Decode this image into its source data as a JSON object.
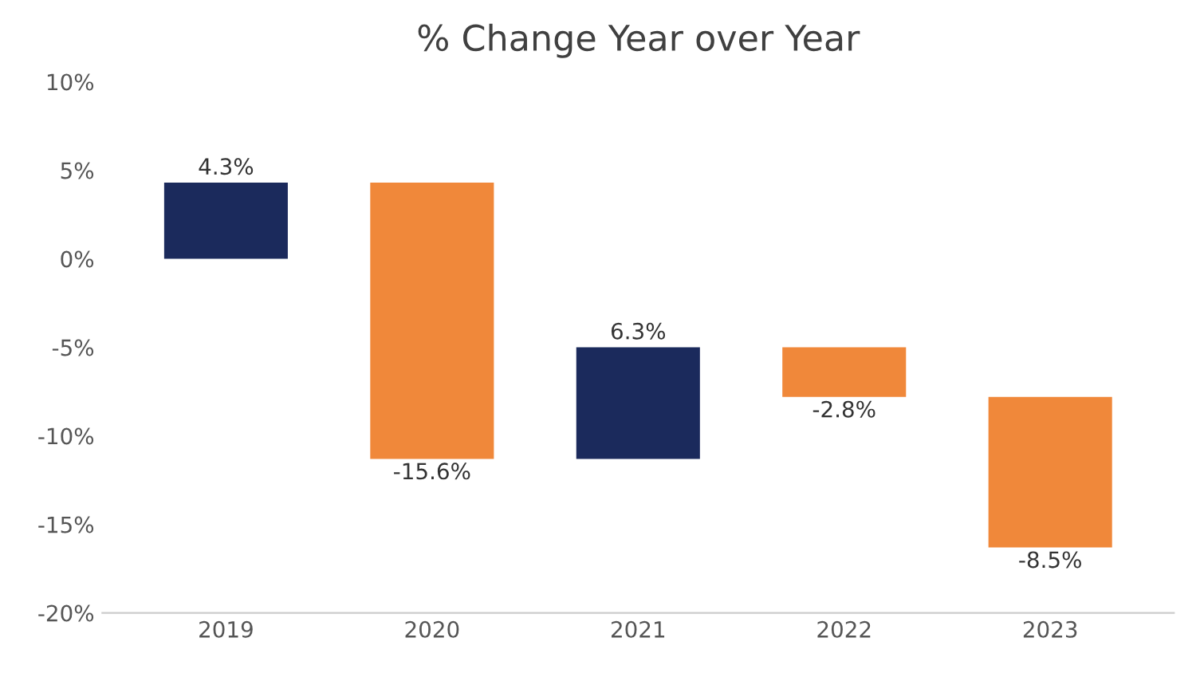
{
  "chart_data": {
    "type": "bar",
    "title": "% Change Year over Year",
    "categories": [
      "2019",
      "2020",
      "2021",
      "2022",
      "2023"
    ],
    "values": [
      4.3,
      -15.6,
      6.3,
      -2.8,
      -8.5
    ],
    "base": [
      0,
      4.3,
      -11.3,
      -5.0,
      -7.8
    ],
    "colors": [
      "#1b2a5c",
      "#f0883a",
      "#1b2a5c",
      "#f0883a",
      "#f0883a"
    ],
    "value_labels": [
      "4.3%",
      "-15.6%",
      "6.3%",
      "-2.8%",
      "-8.5%"
    ],
    "ylim": [
      -20,
      10
    ],
    "yticks": [
      {
        "value": -20,
        "label": "-20%"
      },
      {
        "value": -15,
        "label": "-15%"
      },
      {
        "value": -10,
        "label": "-10%"
      },
      {
        "value": -5,
        "label": "-5%"
      },
      {
        "value": 0,
        "label": "0%"
      },
      {
        "value": 5,
        "label": "5%"
      },
      {
        "value": 10,
        "label": "10%"
      }
    ],
    "grid": false,
    "legend": false
  }
}
